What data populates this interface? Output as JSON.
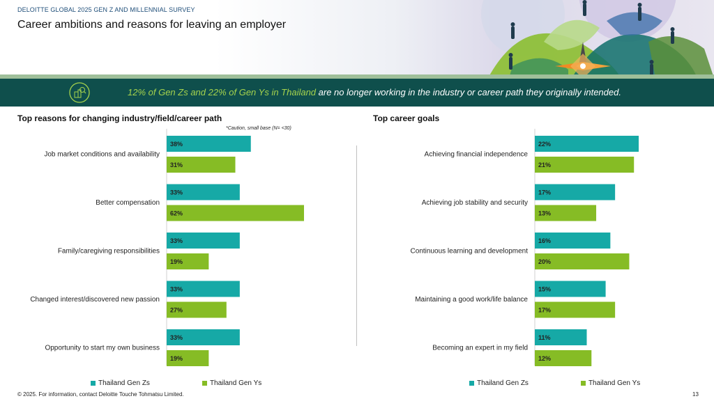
{
  "header": {
    "survey_label": "DELOITTE GLOBAL 2025 GEN Z AND MILLENNIAL SURVEY",
    "title": "Career ambitions and reasons for leaving an employer"
  },
  "banner": {
    "highlight": "12% of Gen Zs and 22% of Gen Ys in Thailand",
    "text": " are no longer working in the industry or career path they originally intended."
  },
  "colors": {
    "gen_z": "#16a9a6",
    "gen_y": "#86bc25",
    "banner_bg": "#0f4f4c",
    "highlight": "#a6d34d"
  },
  "chart_data": [
    {
      "type": "bar",
      "orientation": "horizontal",
      "title": "Top reasons for changing industry/field/career path",
      "note": "*Caution, small base (N= <30)",
      "categories": [
        "Job market conditions and availability",
        "Better compensation",
        "Family/caregiving responsibilities",
        "Changed interest/discovered new passion",
        "Opportunity to start my own business"
      ],
      "series": [
        {
          "name": "Thailand Gen Zs",
          "values": [
            38,
            33,
            33,
            33,
            33
          ],
          "color": "#16a9a6"
        },
        {
          "name": "Thailand Gen Ys",
          "values": [
            31,
            62,
            19,
            27,
            19
          ],
          "color": "#86bc25"
        }
      ],
      "xlim": [
        0,
        62
      ],
      "value_suffix": "%",
      "legend": "bottom"
    },
    {
      "type": "bar",
      "orientation": "horizontal",
      "title": "Top career goals",
      "categories": [
        "Achieving financial independence",
        "Achieving job stability and security",
        "Continuous learning and development",
        "Maintaining a good work/life balance",
        "Becoming an expert in my field"
      ],
      "series": [
        {
          "name": "Thailand Gen Zs",
          "values": [
            22,
            17,
            16,
            15,
            11
          ],
          "color": "#16a9a6"
        },
        {
          "name": "Thailand Gen Ys",
          "values": [
            21,
            13,
            20,
            17,
            12
          ],
          "color": "#86bc25"
        }
      ],
      "xlim": [
        0,
        22
      ],
      "value_suffix": "%",
      "legend": "bottom"
    }
  ],
  "footer": {
    "copyright": "© 2025. For information, contact Deloitte Touche Tohmatsu Limited.",
    "page_number": "13"
  }
}
